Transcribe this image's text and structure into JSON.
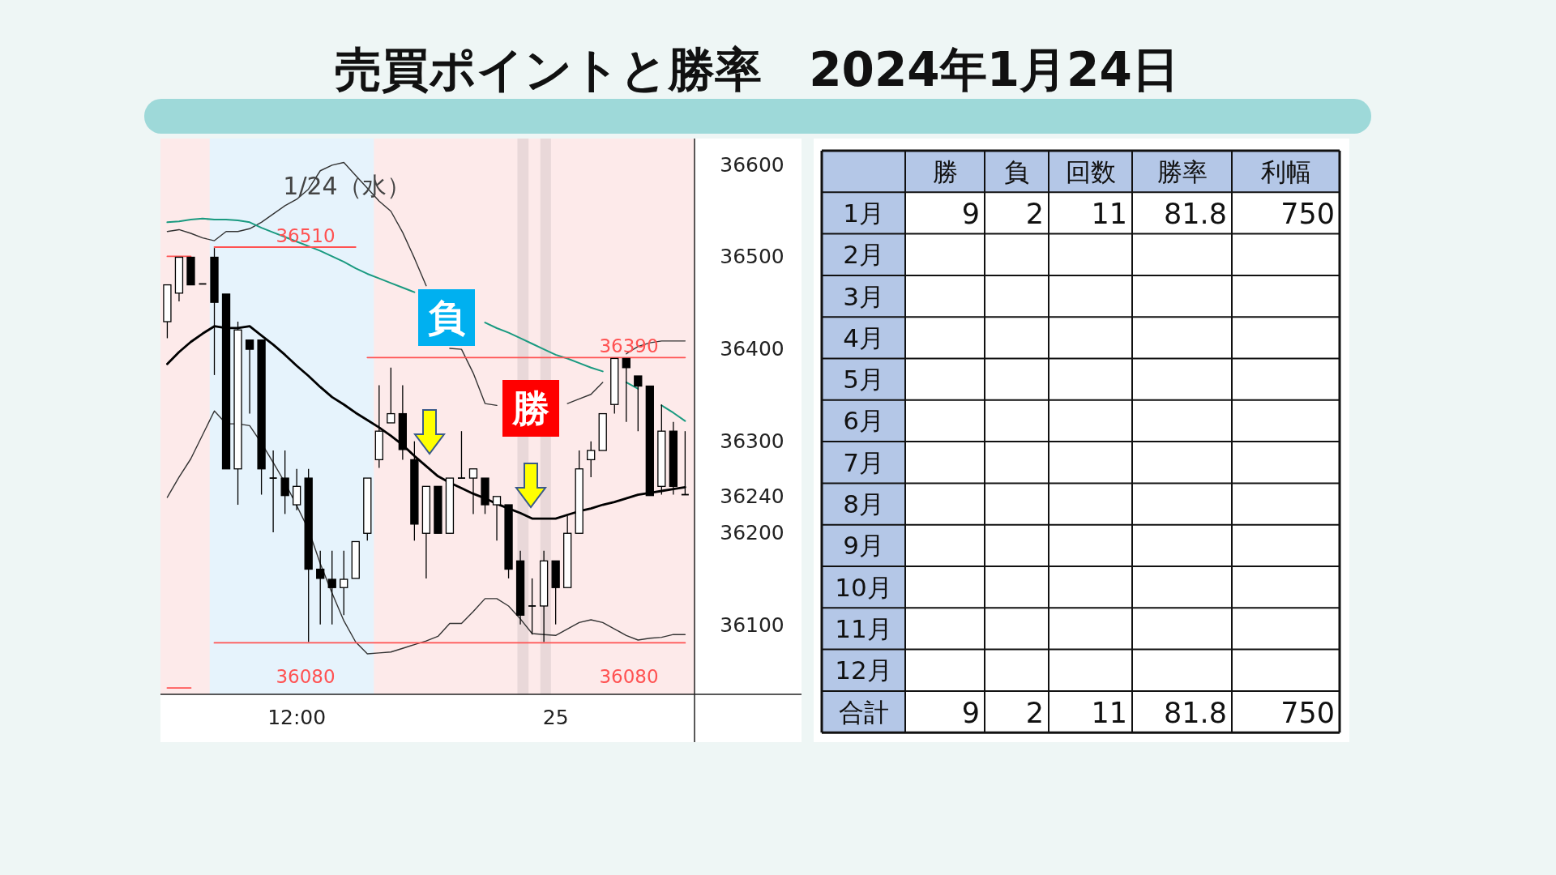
{
  "chart_data": [
    {
      "type": "candlestick",
      "title": "売買ポイントと勝率　2024年1月24日",
      "categories": [
        null,
        null,
        null,
        null,
        null,
        null,
        null,
        null,
        null,
        null,
        null,
        "12:00",
        null,
        null,
        null,
        null,
        null,
        null,
        null,
        null,
        null,
        null,
        null,
        null,
        null,
        null,
        null,
        null,
        null,
        null,
        null,
        null,
        null,
        "25",
        null,
        null,
        null,
        null,
        null,
        null,
        null,
        null,
        null,
        null,
        null
      ],
      "ohlc": [
        [
          36429,
          36469,
          36411,
          36469
        ],
        [
          36460,
          36499,
          36451,
          36499
        ],
        [
          36499,
          36499,
          36469,
          36469
        ],
        [
          36470,
          36470,
          36470,
          36470
        ],
        [
          36499,
          36509,
          36371,
          36450
        ],
        [
          36459,
          36459,
          36269,
          36269
        ],
        [
          36269,
          36429,
          36230,
          36420
        ],
        [
          36409,
          36409,
          36329,
          36399
        ],
        [
          36409,
          36409,
          36241,
          36269
        ],
        [
          36259,
          36289,
          36200,
          36259
        ],
        [
          36259,
          36289,
          36220,
          36240
        ],
        [
          36230,
          36269,
          36224,
          36250
        ],
        [
          36259,
          36269,
          36081,
          36160
        ],
        [
          36160,
          36180,
          36100,
          36150
        ],
        [
          36149,
          36180,
          36100,
          36140
        ],
        [
          36140,
          36180,
          36110,
          36149
        ],
        [
          36150,
          36190,
          36150,
          36190
        ],
        [
          36199,
          36259,
          36191,
          36259
        ],
        [
          36279,
          36360,
          36270,
          36310
        ],
        [
          36319,
          36379,
          36319,
          36329
        ],
        [
          36329,
          36360,
          36279,
          36290
        ],
        [
          36279,
          36299,
          36191,
          36209
        ],
        [
          36199,
          36250,
          36150,
          36250
        ],
        [
          36250,
          36250,
          36199,
          36199
        ],
        [
          36199,
          36259,
          36199,
          36259
        ],
        [
          36259,
          36310,
          36259,
          36259
        ],
        [
          36259,
          36269,
          36220,
          36269
        ],
        [
          36259,
          36259,
          36220,
          36230
        ],
        [
          36230,
          36239,
          36191,
          36239
        ],
        [
          36230,
          36230,
          36150,
          36160
        ],
        [
          36169,
          36180,
          36100,
          36110
        ],
        [
          36120,
          36150,
          36089,
          36120
        ],
        [
          36120,
          36180,
          36081,
          36169
        ],
        [
          36169,
          36169,
          36100,
          36140
        ],
        [
          36140,
          36218,
          36140,
          36199
        ],
        [
          36199,
          36289,
          36199,
          36269
        ],
        [
          36279,
          36299,
          36260,
          36289
        ],
        [
          36289,
          36329,
          36289,
          36329
        ],
        [
          36339,
          36389,
          36329,
          36389
        ],
        [
          36389,
          36389,
          36320,
          36379
        ],
        [
          36370,
          36370,
          36310,
          36359
        ],
        [
          36359,
          36359,
          36240,
          36240
        ],
        [
          36250,
          36339,
          36241,
          36310
        ],
        [
          36310,
          36320,
          36241,
          36250
        ],
        [
          36241,
          36310,
          36241,
          36241
        ]
      ],
      "series": [
        {
          "type": "line",
          "color": "#333333",
          "values": [
            36527,
            36529,
            36525,
            36520,
            36517,
            36527,
            36527,
            36530,
            36537,
            36546,
            36555,
            36562,
            36573,
            36593,
            36599,
            36602,
            36588,
            36574,
            36560,
            36549,
            36526,
            36498,
            36468,
            null,
            36400,
            36399,
            36373,
            36340,
            36338,
            null,
            null,
            null,
            null,
            null,
            36340,
            36345,
            36350,
            36363,
            null,
            36394,
            36402,
            36406,
            36408,
            36408,
            36408
          ]
        },
        {
          "type": "line",
          "color": "#000000",
          "values": [
            36383,
            36396,
            36407,
            36416,
            36424,
            36422,
            36422,
            36424,
            36414,
            36404,
            36393,
            36381,
            36370,
            36358,
            36347,
            36339,
            36330,
            36322,
            36314,
            36305,
            36295,
            36283,
            36272,
            36261,
            36254,
            36248,
            36242,
            36237,
            36231,
            36226,
            36221,
            36215,
            36215,
            36215,
            36219,
            36223,
            36226,
            36230,
            36233,
            36237,
            36241,
            36243,
            36245,
            36247,
            36249
          ]
        },
        {
          "type": "line",
          "color": "#333333",
          "values": [
            36238,
            36260,
            36280,
            36306,
            36332,
            36318,
            36318,
            36316,
            36297,
            36276,
            36254,
            36229,
            36203,
            36166,
            36134,
            36104,
            36081,
            36068,
            36069,
            36070,
            36074,
            36078,
            36082,
            36087,
            36101,
            36101,
            36114,
            36128,
            36128,
            36120,
            36106,
            36090,
            36089,
            36088,
            36095,
            36102,
            36105,
            36102,
            36095,
            36088,
            36083,
            36085,
            36086,
            36089,
            36089
          ]
        },
        {
          "type": "line",
          "color": "#1a9a80",
          "values": [
            36537,
            36538,
            36540,
            36541,
            36540,
            36540,
            36539,
            36537,
            36531,
            36526,
            36521,
            36516,
            36511,
            36506,
            36500,
            36494,
            36487,
            36481,
            36476,
            36471,
            36466,
            36461,
            null,
            null,
            null,
            null,
            null,
            36428,
            36422,
            36417,
            36411,
            36405,
            36399,
            36393,
            36389,
            36384,
            36379,
            36375,
            null,
            36363,
            36356,
            null,
            36338,
            36330,
            36321
          ]
        },
        {
          "type": "line",
          "color": "#ff5252",
          "values": [
            null,
            null,
            null,
            null,
            36510,
            36510,
            36510,
            36510,
            36510,
            36510,
            36510,
            36510,
            36510,
            36510,
            36510,
            36510,
            36510,
            null,
            null,
            null,
            null,
            null,
            null,
            null,
            null,
            null,
            null,
            null,
            null,
            null,
            null,
            null,
            null,
            null,
            null,
            null,
            null,
            null,
            null,
            null,
            null,
            null,
            null,
            null,
            null
          ]
        },
        {
          "type": "line",
          "color": "#ff5252",
          "values": [
            null,
            null,
            null,
            null,
            null,
            null,
            null,
            null,
            null,
            null,
            null,
            null,
            null,
            null,
            null,
            null,
            null,
            36390,
            36390,
            36390,
            36390,
            36390,
            36390,
            36390,
            36390,
            36390,
            36390,
            36390,
            36390,
            36390,
            36390,
            36390,
            36390,
            36390,
            36390,
            36390,
            36390,
            36390,
            36390,
            36390,
            36390,
            36390,
            36390,
            36390,
            36390
          ]
        },
        {
          "type": "line",
          "color": "#ff5252",
          "values": [
            null,
            null,
            null,
            null,
            36080,
            36080,
            36080,
            36080,
            36080,
            36080,
            36080,
            36080,
            36080,
            36080,
            36080,
            36080,
            36080,
            36080,
            36080,
            36080,
            36080,
            36080,
            36080,
            36080,
            36080,
            36080,
            36080,
            36080,
            36080,
            36080,
            36080,
            36080,
            36080,
            36080,
            36080,
            36080,
            36080,
            36080,
            36080,
            36080,
            36080,
            36080,
            36080,
            36080,
            36080
          ]
        },
        {
          "type": "line",
          "color": "#ff5252",
          "values": [
            36500,
            36500,
            36500,
            null,
            null,
            null,
            null,
            null,
            null,
            null,
            null,
            null,
            null,
            null,
            null,
            null,
            null,
            null,
            null,
            null,
            null,
            null,
            null,
            null,
            null,
            null,
            null,
            null,
            null,
            null,
            null,
            null,
            null,
            null,
            null,
            null,
            null,
            null,
            null,
            null,
            null,
            null,
            null,
            null,
            null
          ]
        },
        {
          "type": "line",
          "color": "#ff5252",
          "values": [
            36031,
            36031,
            36031,
            null,
            null,
            null,
            null,
            null,
            null,
            null,
            null,
            null,
            null,
            null,
            null,
            null,
            null,
            null,
            null,
            null,
            null,
            null,
            null,
            null,
            null,
            null,
            null,
            null,
            null,
            null,
            null,
            null,
            null,
            null,
            null,
            null,
            null,
            null,
            null,
            null,
            null,
            null,
            null,
            null,
            null
          ]
        }
      ],
      "annotations": [
        "1/24（水）",
        "負",
        "勝",
        "36510",
        "36390",
        "36080",
        "36080"
      ],
      "ylim": [
        36024,
        36628
      ],
      "yticks": [
        36100,
        36200,
        36240,
        36300,
        36400,
        36500,
        36600
      ]
    },
    {
      "type": "heatmap",
      "categories": [
        "勝",
        "負",
        "回数",
        "勝率",
        "利幅"
      ],
      "y_categories": [
        "1月",
        "2月",
        "3月",
        "4月",
        "5月",
        "6月",
        "7月",
        "8月",
        "9月",
        "10月",
        "11月",
        "12月",
        "合計"
      ],
      "cells": [
        [
          9,
          2,
          11,
          81.8,
          750
        ],
        [
          null,
          null,
          null,
          null,
          null
        ],
        [
          null,
          null,
          null,
          null,
          null
        ],
        [
          null,
          null,
          null,
          null,
          null
        ],
        [
          null,
          null,
          null,
          null,
          null
        ],
        [
          null,
          null,
          null,
          null,
          null
        ],
        [
          null,
          null,
          null,
          null,
          null
        ],
        [
          null,
          null,
          null,
          null,
          null
        ],
        [
          null,
          null,
          null,
          null,
          null
        ],
        [
          null,
          null,
          null,
          null,
          null
        ],
        [
          null,
          null,
          null,
          null,
          null
        ],
        [
          null,
          null,
          null,
          null,
          null
        ],
        [
          9,
          2,
          11,
          81.8,
          750
        ]
      ],
      "data_labels": true
    }
  ]
}
